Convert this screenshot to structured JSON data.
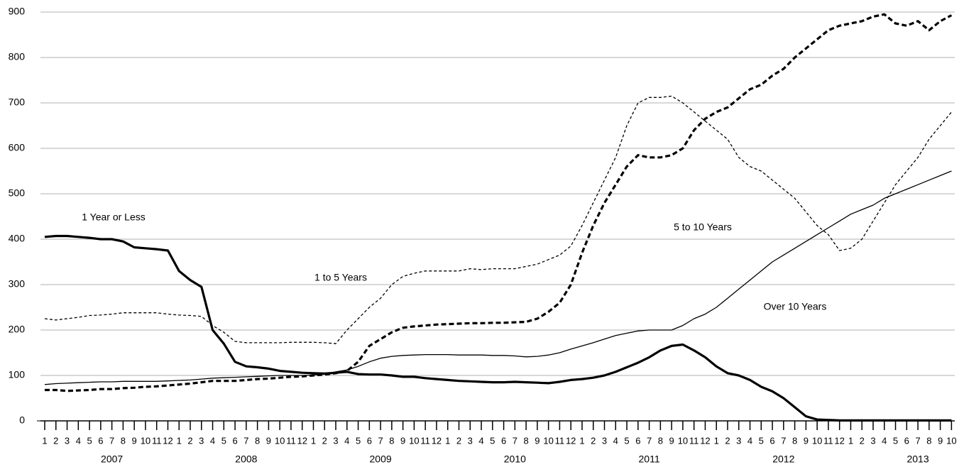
{
  "chart_data": {
    "type": "line",
    "categories": [
      "1",
      "2",
      "3",
      "4",
      "5",
      "6",
      "7",
      "8",
      "9",
      "10",
      "11",
      "12",
      "1",
      "2",
      "3",
      "4",
      "5",
      "6",
      "7",
      "8",
      "9",
      "10",
      "11",
      "12",
      "1",
      "2",
      "3",
      "4",
      "5",
      "6",
      "7",
      "8",
      "9",
      "10",
      "11",
      "12",
      "1",
      "2",
      "3",
      "4",
      "5",
      "6",
      "7",
      "8",
      "9",
      "10",
      "11",
      "12",
      "1",
      "2",
      "3",
      "4",
      "5",
      "6",
      "7",
      "8",
      "9",
      "10",
      "11",
      "12",
      "1",
      "2",
      "3",
      "4",
      "5",
      "6",
      "7",
      "8",
      "9",
      "10",
      "11",
      "12",
      "1",
      "2",
      "3",
      "4",
      "5",
      "6",
      "7",
      "8",
      "9",
      "10"
    ],
    "years": [
      "2007",
      "2008",
      "2009",
      "2010",
      "2011",
      "2012",
      "2013"
    ],
    "ylim": [
      0,
      900
    ],
    "yticks": [
      0,
      100,
      200,
      300,
      400,
      500,
      600,
      700,
      800,
      900
    ],
    "grid": true,
    "series": [
      {
        "name": "1 Year or Less",
        "color": "#000000",
        "line_style": "solid",
        "thick": true,
        "values": [
          405,
          407,
          407,
          405,
          403,
          400,
          400,
          395,
          382,
          380,
          378,
          375,
          330,
          310,
          295,
          200,
          170,
          130,
          120,
          118,
          115,
          110,
          108,
          106,
          105,
          104,
          106,
          108,
          103,
          102,
          102,
          100,
          97,
          97,
          94,
          92,
          90,
          88,
          87,
          86,
          85,
          85,
          86,
          85,
          84,
          83,
          86,
          90,
          92,
          95,
          100,
          108,
          118,
          128,
          140,
          155,
          165,
          168,
          155,
          140,
          120,
          105,
          100,
          90,
          75,
          65,
          50,
          30,
          10,
          3,
          2,
          1,
          1,
          1,
          1,
          1,
          1,
          1,
          1,
          1,
          1,
          1
        ]
      },
      {
        "name": "1 to 5 Years",
        "color": "#000000",
        "line_style": "dashed",
        "thick": false,
        "values": [
          225,
          222,
          225,
          228,
          232,
          233,
          235,
          238,
          238,
          238,
          238,
          235,
          233,
          232,
          230,
          210,
          195,
          175,
          172,
          172,
          172,
          172,
          173,
          173,
          173,
          172,
          170,
          200,
          225,
          250,
          270,
          300,
          318,
          325,
          330,
          330,
          330,
          330,
          335,
          333,
          335,
          335,
          335,
          340,
          345,
          355,
          365,
          385,
          430,
          480,
          530,
          580,
          650,
          700,
          712,
          712,
          715,
          700,
          680,
          660,
          640,
          620,
          580,
          560,
          550,
          530,
          510,
          490,
          460,
          430,
          410,
          375,
          380,
          400,
          440,
          480,
          520,
          550,
          580,
          620,
          650,
          680
        ]
      },
      {
        "name": "5 to 10 Years",
        "color": "#000000",
        "line_style": "dashed",
        "thick": true,
        "values": [
          68,
          68,
          66,
          67,
          68,
          70,
          70,
          72,
          73,
          75,
          76,
          78,
          80,
          82,
          85,
          88,
          88,
          88,
          90,
          92,
          93,
          95,
          97,
          98,
          100,
          102,
          105,
          110,
          130,
          165,
          180,
          195,
          205,
          208,
          210,
          212,
          213,
          214,
          215,
          215,
          216,
          216,
          217,
          218,
          225,
          240,
          260,
          300,
          370,
          430,
          480,
          520,
          560,
          585,
          580,
          580,
          585,
          600,
          640,
          665,
          680,
          690,
          710,
          730,
          740,
          760,
          775,
          800,
          820,
          840,
          860,
          870,
          875,
          880,
          890,
          895,
          875,
          870,
          880,
          860,
          880,
          893
        ]
      },
      {
        "name": "Over 10 Years",
        "color": "#000000",
        "line_style": "solid",
        "thick": false,
        "values": [
          80,
          82,
          83,
          84,
          85,
          86,
          86,
          87,
          87,
          87,
          87,
          88,
          89,
          90,
          92,
          94,
          95,
          96,
          97,
          98,
          99,
          100,
          100,
          100,
          101,
          103,
          108,
          112,
          120,
          130,
          138,
          142,
          144,
          145,
          146,
          146,
          146,
          145,
          145,
          145,
          144,
          144,
          143,
          141,
          142,
          145,
          150,
          158,
          165,
          172,
          180,
          188,
          193,
          198,
          200,
          200,
          200,
          210,
          225,
          235,
          250,
          270,
          290,
          310,
          330,
          350,
          365,
          380,
          395,
          410,
          425,
          440,
          455,
          465,
          475,
          490,
          500,
          510,
          520,
          530,
          540,
          550
        ]
      }
    ]
  }
}
